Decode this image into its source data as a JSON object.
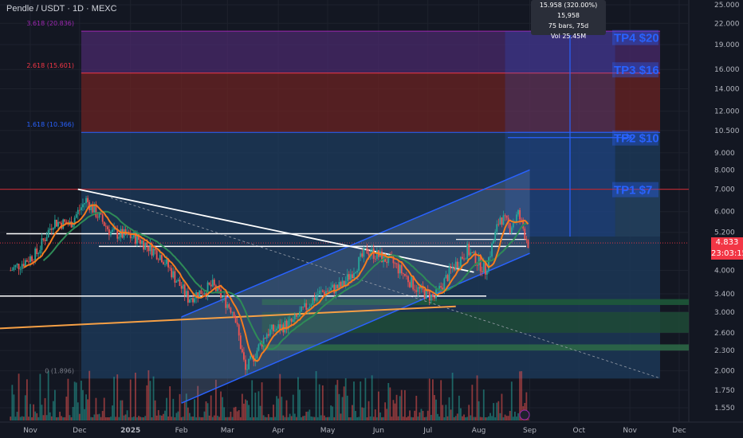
{
  "header": {
    "title": "Pendle / USDT · 1D · MEXC"
  },
  "price_axis": {
    "ticks": [
      "25.000",
      "22.000",
      "19.000",
      "16.000",
      "14.000",
      "12.000",
      "10.500",
      "9.000",
      "8.000",
      "7.000",
      "6.000",
      "5.200",
      "4.000",
      "3.400",
      "3.000",
      "2.600",
      "2.300",
      "2.000",
      "1.750",
      "1.550"
    ],
    "current_price": "4.833",
    "countdown": "23:03:15",
    "current_color": "#f23645"
  },
  "time_axis": {
    "ticks": [
      "Nov",
      "Dec",
      "2025",
      "Feb",
      "Mar",
      "Apr",
      "May",
      "Jun",
      "Jul",
      "Aug",
      "Sep",
      "Oct",
      "Nov",
      "Dec"
    ]
  },
  "fib_levels": [
    {
      "label": "3.618 (20.836)",
      "color": "#9c27b0"
    },
    {
      "label": "2.618 (15.601)",
      "color": "#f23645"
    },
    {
      "label": "1.618 (10.366)",
      "color": "#2962ff"
    },
    {
      "label": "0 (1.896)",
      "color": "#787b86"
    }
  ],
  "targets": [
    {
      "label": "TP4 $20"
    },
    {
      "label": "TP3 $16"
    },
    {
      "label": "TP2 $10"
    },
    {
      "label": "TP1 $7"
    }
  ],
  "measure_tooltip": {
    "line1": "15.958 (320.00%) 15,958",
    "line2": "75 bars, 75d",
    "line3": "Vol 25.45M"
  },
  "chart_data": {
    "type": "candlestick",
    "title": "Pendle / USDT · 1D · MEXC",
    "y_scale": "log",
    "ylim": [
      1.45,
      26
    ],
    "x_range": [
      "2024-10-20",
      "2025-12-31"
    ],
    "price_path": [
      {
        "date": "2024-10-20",
        "close": 4.0
      },
      {
        "date": "2024-11-05",
        "close": 4.5
      },
      {
        "date": "2024-11-15",
        "close": 5.6
      },
      {
        "date": "2024-11-25",
        "close": 5.5
      },
      {
        "date": "2024-12-05",
        "close": 6.5
      },
      {
        "date": "2024-12-20",
        "close": 5.2
      },
      {
        "date": "2025-01-05",
        "close": 5.0
      },
      {
        "date": "2025-01-20",
        "close": 4.4
      },
      {
        "date": "2025-02-05",
        "close": 3.3
      },
      {
        "date": "2025-02-20",
        "close": 3.6
      },
      {
        "date": "2025-03-05",
        "close": 3.0
      },
      {
        "date": "2025-03-12",
        "close": 2.0
      },
      {
        "date": "2025-03-25",
        "close": 2.6
      },
      {
        "date": "2025-04-10",
        "close": 2.8
      },
      {
        "date": "2025-04-25",
        "close": 3.4
      },
      {
        "date": "2025-05-10",
        "close": 3.6
      },
      {
        "date": "2025-05-25",
        "close": 4.6
      },
      {
        "date": "2025-06-10",
        "close": 4.2
      },
      {
        "date": "2025-06-25",
        "close": 3.5
      },
      {
        "date": "2025-07-05",
        "close": 3.3
      },
      {
        "date": "2025-07-15",
        "close": 4.0
      },
      {
        "date": "2025-07-25",
        "close": 4.6
      },
      {
        "date": "2025-08-05",
        "close": 4.0
      },
      {
        "date": "2025-08-14",
        "close": 5.8
      },
      {
        "date": "2025-08-20",
        "close": 5.4
      },
      {
        "date": "2025-08-25",
        "close": 5.9
      },
      {
        "date": "2025-08-31",
        "close": 4.833
      }
    ],
    "horizontal_levels": [
      5.15,
      4.9,
      3.35,
      7.0
    ],
    "channel": {
      "lower": [
        {
          "date": "2025-02-01",
          "price": 1.6
        },
        {
          "date": "2025-09-01",
          "price": 4.5
        }
      ],
      "upper": [
        {
          "date": "2025-02-01",
          "price": 2.9
        },
        {
          "date": "2025-09-01",
          "price": 8.0
        }
      ]
    },
    "fib_extension_prices": [
      20.836,
      15.601,
      10.366,
      1.896
    ],
    "target_prices": [
      20,
      16,
      10,
      7
    ]
  }
}
